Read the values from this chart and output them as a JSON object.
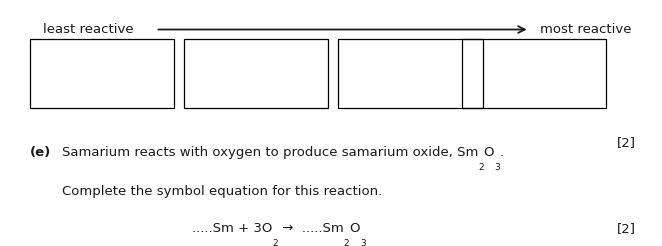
{
  "background_color": "#ffffff",
  "arrow_label_left": "least reactive",
  "arrow_label_right": "most reactive",
  "box_color": "#000000",
  "text_color": "#1a1a1a",
  "fontsize_main": 9.5,
  "fontsize_sub": 6.5,
  "fig_width": 6.62,
  "fig_height": 2.46,
  "dpi": 100,
  "mark_2_top": "[2]",
  "mark_2_bot": "[2]",
  "part_e_bold": "(e)",
  "sentence1_main": "Samarium reacts with oxygen to produce samarium oxide, Sm",
  "sentence1_O": "O",
  "sentence1_period": ".",
  "sentence2": "Complete the symbol equation for this reaction.",
  "eq_part1": ".....Sm + 3O",
  "eq_arrow": " →  .....Sm",
  "eq_O": "O"
}
